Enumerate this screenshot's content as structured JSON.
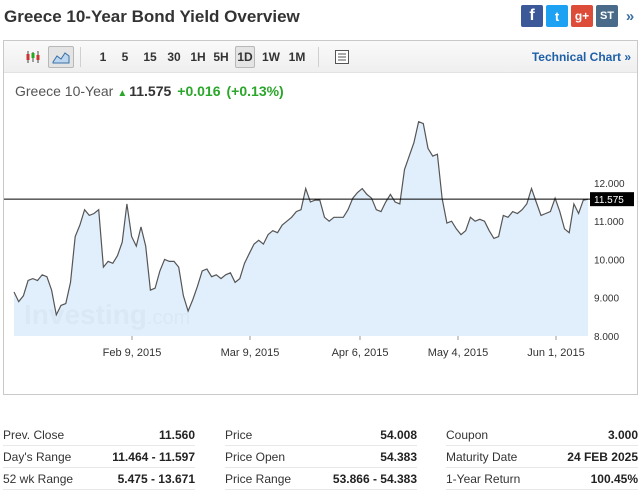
{
  "page_title": "Greece 10-Year Bond Yield Overview",
  "social": {
    "facebook": "f",
    "twitter": "t",
    "google": "g+",
    "stocktwits": "ST",
    "more": "»"
  },
  "toolbar": {
    "timeframes": [
      "1",
      "5",
      "15",
      "30",
      "1H",
      "5H",
      "1D",
      "1W",
      "1M"
    ],
    "active_timeframe": "1D",
    "technical_chart": "Technical Chart »"
  },
  "quote": {
    "name": "Greece 10-Year",
    "last": "11.575",
    "change": "+0.016",
    "change_pct": "(+0.13%)"
  },
  "watermark": {
    "brand": "Investing",
    "suffix": ".com"
  },
  "chart_data": {
    "type": "area",
    "x_tick_labels": [
      "Feb 9, 2015",
      "Mar 9, 2015",
      "Apr 6, 2015",
      "May 4, 2015",
      "Jun 1, 2015"
    ],
    "y_tick_labels": [
      "12.000",
      "11.000",
      "10.000",
      "9.000",
      "8.000"
    ],
    "ylim": [
      8.0,
      13.8
    ],
    "last_value": 11.575,
    "last_label": "11.575",
    "colors": {
      "line": "#555555",
      "fill": "#dcecfb",
      "price_line": "#000000",
      "price_tag": "#000000"
    },
    "grid": false,
    "values": [
      9.15,
      8.9,
      9.05,
      9.45,
      9.5,
      9.45,
      9.6,
      9.55,
      9.2,
      8.55,
      8.8,
      8.85,
      9.4,
      10.6,
      10.9,
      11.3,
      11.15,
      11.2,
      11.3,
      9.8,
      9.95,
      9.9,
      10.1,
      10.45,
      11.45,
      10.6,
      10.35,
      10.85,
      10.35,
      9.2,
      9.25,
      9.7,
      10.0,
      9.95,
      9.95,
      9.8,
      9.05,
      8.65,
      8.95,
      9.3,
      9.7,
      9.75,
      9.55,
      9.6,
      9.5,
      9.6,
      9.65,
      9.4,
      9.5,
      9.9,
      10.15,
      10.4,
      10.5,
      10.4,
      10.65,
      10.75,
      10.7,
      10.9,
      11.0,
      11.1,
      11.25,
      11.3,
      11.85,
      11.5,
      11.55,
      11.55,
      11.1,
      11.0,
      11.1,
      11.1,
      11.1,
      11.3,
      11.6,
      11.75,
      11.85,
      11.7,
      11.6,
      11.3,
      11.25,
      11.5,
      11.7,
      11.5,
      11.45,
      12.35,
      12.7,
      13.05,
      13.6,
      13.55,
      12.9,
      12.7,
      12.75,
      11.6,
      10.95,
      11.0,
      10.8,
      10.65,
      10.75,
      11.1,
      11.0,
      11.05,
      11.0,
      10.75,
      10.55,
      10.6,
      11.15,
      11.1,
      11.25,
      11.2,
      11.3,
      11.45,
      11.85,
      11.5,
      11.15,
      11.2,
      11.25,
      11.6,
      11.25,
      10.8,
      10.7,
      11.45,
      11.2,
      11.55,
      11.575
    ]
  },
  "stats": [
    [
      {
        "label": "Prev. Close",
        "value": "11.560"
      },
      {
        "label": "Price",
        "value": "54.008"
      },
      {
        "label": "Coupon",
        "value": "3.000"
      }
    ],
    [
      {
        "label": "Day's Range",
        "value": "11.464 - 11.597"
      },
      {
        "label": "Price Open",
        "value": "54.383"
      },
      {
        "label": "Maturity Date",
        "value": "24 FEB 2025"
      }
    ],
    [
      {
        "label": "52 wk Range",
        "value": "5.475 - 13.671"
      },
      {
        "label": "Price Range",
        "value": "53.866 - 54.383"
      },
      {
        "label": "1-Year Return",
        "value": "100.45%"
      }
    ]
  ]
}
